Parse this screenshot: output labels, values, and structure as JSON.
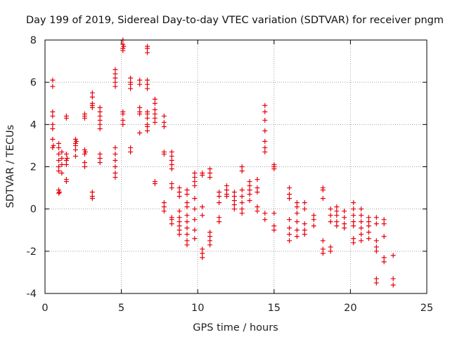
{
  "chart_data": {
    "type": "scatter",
    "title": "Day 199 of 2019, Sidereal Day-to-day VTEC variation (SDTVAR) for receiver pngm",
    "xlabel": "GPS time / hours",
    "ylabel": "SDTVAR / TECUs",
    "xlim": [
      0,
      25
    ],
    "ylim": [
      -4,
      8
    ],
    "xticks": [
      0,
      5,
      10,
      15,
      20,
      25
    ],
    "yticks": [
      -4,
      -2,
      0,
      2,
      4,
      6,
      8
    ],
    "x_tick_labels": [
      "0",
      "5",
      "10",
      "15",
      "20",
      "25"
    ],
    "y_tick_labels": [
      "-4",
      "-2",
      "0",
      "2",
      "4",
      "6",
      "8"
    ],
    "grid": true,
    "marker": "plus",
    "marker_color": "#e8000b",
    "series": [
      {
        "name": "SDTVAR",
        "points": [
          [
            0.5,
            6.1
          ],
          [
            0.5,
            5.8
          ],
          [
            0.5,
            4.6
          ],
          [
            0.5,
            4.4
          ],
          [
            0.5,
            4.0
          ],
          [
            0.5,
            3.8
          ],
          [
            0.5,
            3.3
          ],
          [
            0.5,
            2.9
          ],
          [
            0.55,
            3.0
          ],
          [
            0.9,
            3.1
          ],
          [
            0.9,
            2.9
          ],
          [
            0.9,
            2.6
          ],
          [
            0.9,
            2.3
          ],
          [
            0.9,
            2.0
          ],
          [
            0.9,
            1.8
          ],
          [
            0.9,
            0.9
          ],
          [
            0.9,
            0.75
          ],
          [
            0.95,
            0.8
          ],
          [
            1.1,
            2.7
          ],
          [
            1.1,
            2.4
          ],
          [
            1.1,
            2.1
          ],
          [
            1.1,
            1.7
          ],
          [
            1.4,
            4.4
          ],
          [
            1.4,
            4.3
          ],
          [
            1.4,
            2.6
          ],
          [
            1.4,
            2.3
          ],
          [
            1.4,
            2.1
          ],
          [
            1.4,
            1.4
          ],
          [
            1.4,
            1.3
          ],
          [
            1.45,
            2.4
          ],
          [
            2.0,
            3.3
          ],
          [
            2.0,
            3.1
          ],
          [
            2.0,
            3.0
          ],
          [
            2.0,
            2.8
          ],
          [
            2.0,
            2.5
          ],
          [
            2.05,
            3.2
          ],
          [
            2.6,
            4.5
          ],
          [
            2.6,
            4.4
          ],
          [
            2.6,
            4.3
          ],
          [
            2.6,
            2.8
          ],
          [
            2.6,
            2.6
          ],
          [
            2.6,
            2.2
          ],
          [
            2.6,
            2.0
          ],
          [
            2.65,
            2.7
          ],
          [
            3.1,
            5.5
          ],
          [
            3.1,
            5.3
          ],
          [
            3.1,
            5.0
          ],
          [
            3.1,
            4.9
          ],
          [
            3.1,
            4.8
          ],
          [
            3.1,
            0.8
          ],
          [
            3.1,
            0.6
          ],
          [
            3.1,
            0.5
          ],
          [
            3.6,
            4.8
          ],
          [
            3.6,
            4.6
          ],
          [
            3.6,
            4.4
          ],
          [
            3.6,
            4.2
          ],
          [
            3.6,
            4.0
          ],
          [
            3.6,
            3.8
          ],
          [
            3.6,
            2.6
          ],
          [
            3.6,
            2.4
          ],
          [
            3.6,
            2.2
          ],
          [
            4.6,
            6.6
          ],
          [
            4.6,
            6.4
          ],
          [
            4.6,
            6.2
          ],
          [
            4.6,
            6.0
          ],
          [
            4.6,
            5.8
          ],
          [
            4.6,
            2.9
          ],
          [
            4.6,
            2.6
          ],
          [
            4.6,
            2.3
          ],
          [
            4.6,
            2.0
          ],
          [
            4.6,
            1.7
          ],
          [
            4.6,
            1.5
          ],
          [
            5.1,
            8.0
          ],
          [
            5.1,
            7.8
          ],
          [
            5.1,
            7.6
          ],
          [
            5.1,
            7.5
          ],
          [
            5.1,
            4.6
          ],
          [
            5.1,
            4.5
          ],
          [
            5.1,
            4.2
          ],
          [
            5.1,
            4.0
          ],
          [
            5.15,
            7.7
          ],
          [
            5.6,
            6.2
          ],
          [
            5.6,
            6.0
          ],
          [
            5.6,
            5.9
          ],
          [
            5.6,
            5.7
          ],
          [
            5.6,
            2.9
          ],
          [
            5.6,
            2.7
          ],
          [
            6.2,
            6.1
          ],
          [
            6.2,
            5.9
          ],
          [
            6.2,
            4.8
          ],
          [
            6.2,
            4.6
          ],
          [
            6.2,
            4.5
          ],
          [
            6.2,
            3.6
          ],
          [
            6.7,
            7.7
          ],
          [
            6.7,
            7.6
          ],
          [
            6.7,
            7.4
          ],
          [
            6.7,
            6.1
          ],
          [
            6.7,
            5.9
          ],
          [
            6.7,
            5.7
          ],
          [
            6.7,
            4.6
          ],
          [
            6.7,
            4.5
          ],
          [
            6.7,
            4.3
          ],
          [
            6.7,
            4.0
          ],
          [
            6.7,
            3.9
          ],
          [
            6.7,
            3.7
          ],
          [
            7.2,
            5.2
          ],
          [
            7.2,
            5.0
          ],
          [
            7.2,
            4.7
          ],
          [
            7.2,
            4.5
          ],
          [
            7.2,
            4.3
          ],
          [
            7.2,
            4.1
          ],
          [
            7.2,
            1.3
          ],
          [
            7.2,
            1.2
          ],
          [
            7.8,
            4.4
          ],
          [
            7.8,
            4.1
          ],
          [
            7.8,
            3.9
          ],
          [
            7.8,
            2.7
          ],
          [
            7.8,
            2.6
          ],
          [
            7.8,
            0.3
          ],
          [
            7.8,
            0.1
          ],
          [
            7.8,
            -0.1
          ],
          [
            8.3,
            2.7
          ],
          [
            8.3,
            2.5
          ],
          [
            8.3,
            2.3
          ],
          [
            8.3,
            2.1
          ],
          [
            8.3,
            1.9
          ],
          [
            8.3,
            1.2
          ],
          [
            8.3,
            1.0
          ],
          [
            8.3,
            -0.4
          ],
          [
            8.3,
            -0.5
          ],
          [
            8.3,
            -0.7
          ],
          [
            8.8,
            1.0
          ],
          [
            8.8,
            0.8
          ],
          [
            8.8,
            0.6
          ],
          [
            8.8,
            -0.1
          ],
          [
            8.8,
            -0.4
          ],
          [
            8.8,
            -0.6
          ],
          [
            8.8,
            -0.8
          ],
          [
            8.8,
            -1.0
          ],
          [
            8.8,
            -1.2
          ],
          [
            9.3,
            0.9
          ],
          [
            9.3,
            0.7
          ],
          [
            9.3,
            0.3
          ],
          [
            9.3,
            0.1
          ],
          [
            9.3,
            -0.3
          ],
          [
            9.3,
            -0.6
          ],
          [
            9.3,
            -0.9
          ],
          [
            9.3,
            -1.2
          ],
          [
            9.3,
            -1.5
          ],
          [
            9.3,
            -1.7
          ],
          [
            9.8,
            1.7
          ],
          [
            9.8,
            1.5
          ],
          [
            9.8,
            1.3
          ],
          [
            9.8,
            1.1
          ],
          [
            9.8,
            0.5
          ],
          [
            9.8,
            0.0
          ],
          [
            9.8,
            -0.5
          ],
          [
            9.8,
            -1.0
          ],
          [
            9.8,
            -1.4
          ],
          [
            10.3,
            1.7
          ],
          [
            10.3,
            1.6
          ],
          [
            10.3,
            0.1
          ],
          [
            10.3,
            -0.3
          ],
          [
            10.3,
            -1.9
          ],
          [
            10.3,
            -2.1
          ],
          [
            10.3,
            -2.3
          ],
          [
            10.8,
            1.9
          ],
          [
            10.8,
            1.7
          ],
          [
            10.8,
            1.5
          ],
          [
            10.8,
            -1.1
          ],
          [
            10.8,
            -1.3
          ],
          [
            10.8,
            -1.5
          ],
          [
            10.8,
            -1.7
          ],
          [
            11.4,
            0.8
          ],
          [
            11.4,
            0.6
          ],
          [
            11.4,
            0.3
          ],
          [
            11.4,
            -0.4
          ],
          [
            11.4,
            -0.6
          ],
          [
            11.9,
            1.1
          ],
          [
            11.9,
            0.9
          ],
          [
            11.9,
            0.7
          ],
          [
            11.9,
            0.6
          ],
          [
            12.4,
            0.8
          ],
          [
            12.4,
            0.6
          ],
          [
            12.4,
            0.4
          ],
          [
            12.4,
            0.2
          ],
          [
            12.4,
            0.0
          ],
          [
            12.9,
            2.0
          ],
          [
            12.9,
            1.8
          ],
          [
            12.9,
            0.9
          ],
          [
            12.9,
            0.6
          ],
          [
            12.9,
            0.3
          ],
          [
            12.9,
            0.0
          ],
          [
            12.9,
            -0.2
          ],
          [
            13.4,
            1.3
          ],
          [
            13.4,
            1.1
          ],
          [
            13.4,
            0.9
          ],
          [
            13.4,
            0.7
          ],
          [
            13.4,
            0.4
          ],
          [
            13.9,
            1.4
          ],
          [
            13.9,
            1.0
          ],
          [
            13.9,
            0.8
          ],
          [
            13.9,
            0.1
          ],
          [
            13.9,
            -0.1
          ],
          [
            14.4,
            4.9
          ],
          [
            14.4,
            4.6
          ],
          [
            14.4,
            4.2
          ],
          [
            14.4,
            3.7
          ],
          [
            14.4,
            3.2
          ],
          [
            14.4,
            2.9
          ],
          [
            14.4,
            2.7
          ],
          [
            14.4,
            -0.2
          ],
          [
            14.4,
            -0.5
          ],
          [
            15.0,
            2.1
          ],
          [
            15.0,
            2.0
          ],
          [
            15.0,
            1.9
          ],
          [
            15.0,
            -0.2
          ],
          [
            15.0,
            -0.8
          ],
          [
            15.0,
            -1.0
          ],
          [
            16.0,
            1.0
          ],
          [
            16.0,
            0.7
          ],
          [
            16.0,
            0.5
          ],
          [
            16.0,
            -0.5
          ],
          [
            16.0,
            -0.9
          ],
          [
            16.0,
            -1.2
          ],
          [
            16.0,
            -1.5
          ],
          [
            16.5,
            0.3
          ],
          [
            16.5,
            0.1
          ],
          [
            16.5,
            -0.2
          ],
          [
            16.5,
            -0.6
          ],
          [
            16.5,
            -1.0
          ],
          [
            16.5,
            -1.3
          ],
          [
            17.0,
            0.3
          ],
          [
            17.0,
            0.0
          ],
          [
            17.0,
            -0.7
          ],
          [
            17.0,
            -1.0
          ],
          [
            17.0,
            -1.2
          ],
          [
            17.6,
            -0.3
          ],
          [
            17.6,
            -0.5
          ],
          [
            17.6,
            -0.8
          ],
          [
            18.2,
            1.0
          ],
          [
            18.2,
            0.9
          ],
          [
            18.2,
            0.5
          ],
          [
            18.2,
            -1.5
          ],
          [
            18.2,
            -1.9
          ],
          [
            18.2,
            -2.1
          ],
          [
            18.7,
            0.0
          ],
          [
            18.7,
            -0.3
          ],
          [
            18.7,
            -0.6
          ],
          [
            18.7,
            -1.8
          ],
          [
            18.7,
            -2.0
          ],
          [
            19.1,
            0.1
          ],
          [
            19.1,
            -0.1
          ],
          [
            19.1,
            -0.3
          ],
          [
            19.1,
            -0.6
          ],
          [
            19.1,
            -0.8
          ],
          [
            19.6,
            -0.1
          ],
          [
            19.6,
            -0.4
          ],
          [
            19.6,
            -0.7
          ],
          [
            19.6,
            -0.9
          ],
          [
            20.2,
            0.3
          ],
          [
            20.2,
            0.0
          ],
          [
            20.2,
            -0.3
          ],
          [
            20.2,
            -0.6
          ],
          [
            20.2,
            -0.8
          ],
          [
            20.2,
            -1.4
          ],
          [
            20.2,
            -1.6
          ],
          [
            20.7,
            0.0
          ],
          [
            20.7,
            -0.3
          ],
          [
            20.7,
            -0.6
          ],
          [
            20.7,
            -0.9
          ],
          [
            20.7,
            -1.2
          ],
          [
            20.7,
            -1.5
          ],
          [
            21.2,
            -0.4
          ],
          [
            21.2,
            -0.6
          ],
          [
            21.2,
            -0.8
          ],
          [
            21.2,
            -1.1
          ],
          [
            21.2,
            -1.4
          ],
          [
            21.7,
            -0.4
          ],
          [
            21.7,
            -0.7
          ],
          [
            21.7,
            -1.5
          ],
          [
            21.7,
            -1.8
          ],
          [
            21.7,
            -2.0
          ],
          [
            21.7,
            -3.3
          ],
          [
            21.7,
            -3.5
          ],
          [
            22.2,
            -0.5
          ],
          [
            22.2,
            -0.7
          ],
          [
            22.2,
            -1.3
          ],
          [
            22.2,
            -2.3
          ],
          [
            22.2,
            -2.5
          ],
          [
            22.8,
            -2.2
          ],
          [
            22.8,
            -3.3
          ],
          [
            22.8,
            -3.6
          ]
        ]
      }
    ]
  }
}
